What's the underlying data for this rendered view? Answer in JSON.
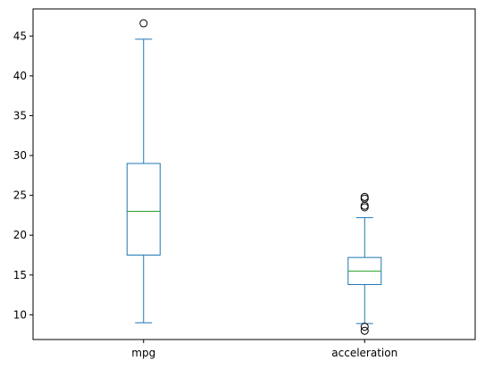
{
  "chart_data": {
    "type": "box",
    "title": "",
    "xlabel": "",
    "ylabel": "",
    "categories": [
      "mpg",
      "acceleration"
    ],
    "ylim": [
      6.9,
      48.4
    ],
    "yticks": [
      10,
      15,
      20,
      25,
      30,
      35,
      40,
      45
    ],
    "yticks_labels": [
      "10",
      "15",
      "20",
      "25",
      "30",
      "35",
      "40",
      "45"
    ],
    "grid": false,
    "colors": {
      "box": "#1f77b4",
      "median": "#2ca02c",
      "outlier": "#000000",
      "axis": "#000000"
    },
    "series": [
      {
        "category": "mpg",
        "min": 9.0,
        "q1": 17.5,
        "median": 23.0,
        "q3": 29.0,
        "max": 44.6,
        "outliers": [
          46.6
        ]
      },
      {
        "category": "acceleration",
        "min": 8.9,
        "q1": 13.8,
        "median": 15.5,
        "q3": 17.2,
        "max": 22.2,
        "outliers": [
          8.0,
          8.5,
          23.5,
          23.7,
          24.6,
          24.8
        ]
      }
    ]
  }
}
